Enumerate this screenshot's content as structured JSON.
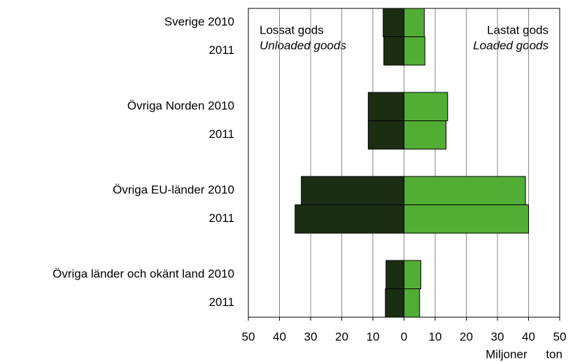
{
  "chart_data": {
    "type": "diverging_bar",
    "categories": [
      "Sverige 2010",
      "2011",
      "Övriga Norden 2010",
      "2011",
      "Övriga EU-länder 2010",
      "2011",
      "Övriga länder och okänt land 2010",
      "2011"
    ],
    "series": [
      {
        "name": "Unloaded goods",
        "color": "#1b2e14",
        "values": [
          -6.7,
          -6.5,
          -11.5,
          -11.5,
          -33,
          -35,
          -5.8,
          -6
        ]
      },
      {
        "name": "Loaded goods",
        "color": "#52ad35",
        "values": [
          6.5,
          6.7,
          14,
          13.5,
          39,
          40,
          5.4,
          5
        ]
      }
    ],
    "annotations": [
      "Lossat gods",
      "Unloaded goods",
      "Lastat gods",
      "Loaded goods"
    ],
    "x_label": "Miljoner ton",
    "xlim": [
      -50,
      50
    ],
    "xticks": [
      {
        "value": -50,
        "label": "50"
      },
      {
        "value": -40,
        "label": "40"
      },
      {
        "value": -30,
        "label": "30"
      },
      {
        "value": -20,
        "label": "20"
      },
      {
        "value": -10,
        "label": "10"
      },
      0,
      10,
      20,
      30,
      40,
      50
    ],
    "grid": true
  }
}
